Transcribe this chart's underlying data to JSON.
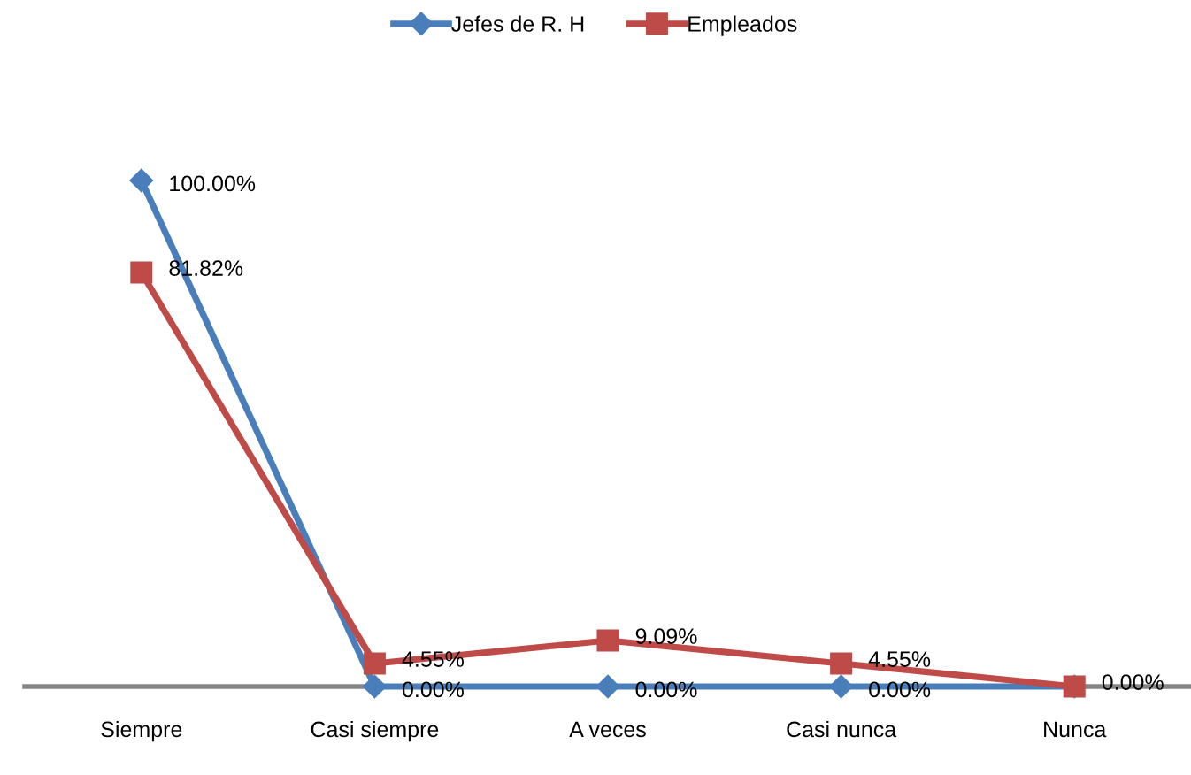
{
  "chart_data": {
    "type": "line",
    "categories": [
      "Siempre",
      "Casi siempre",
      "A veces",
      "Casi nunca",
      "Nunca"
    ],
    "series": [
      {
        "name": "Jefes de R. H",
        "color": "#4a7ebb",
        "marker": "diamond",
        "values": [
          100,
          0,
          0,
          0,
          0
        ],
        "value_labels": [
          "100.00%",
          "0.00%",
          "0.00%",
          "0.00%",
          null
        ]
      },
      {
        "name": "Empleados",
        "color": "#be4b48",
        "marker": "square",
        "values": [
          81.82,
          4.55,
          9.09,
          4.55,
          0
        ],
        "value_labels": [
          "81.82%",
          "4.55%",
          "9.09%",
          "4.55%",
          "0.00%"
        ]
      }
    ],
    "tick_labels": "x",
    "grid": false,
    "legend": "top",
    "line_style": "solid"
  }
}
